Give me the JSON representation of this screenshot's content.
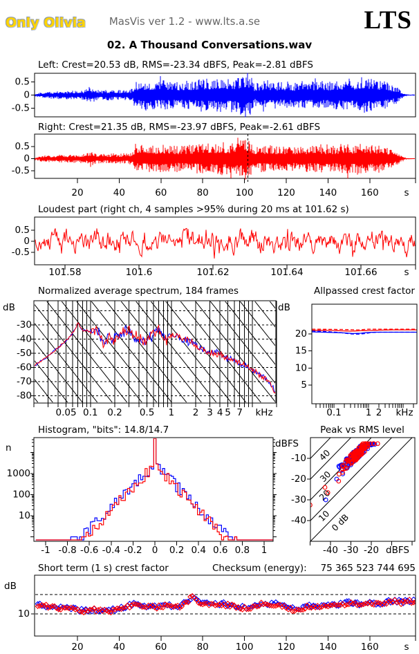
{
  "header": {
    "artist": "Only Olivia",
    "app": "MasVis ver 1.2 - www.lts.a.se",
    "logo": "LTS",
    "track": "02. A Thousand Conversations.wav"
  },
  "colors": {
    "left": "#0000ff",
    "right": "#ff0000",
    "axis": "#000000",
    "header_gray": "#666666"
  },
  "chart_data": [
    {
      "type": "waveform",
      "channel": "left",
      "title": "Left: Crest=20.53 dB, RMS=-23.34 dBFS, Peak=-2.81 dBFS",
      "crest_db": 20.53,
      "rms_dbfs": -23.34,
      "peak_dbfs": -2.81,
      "yticks": [
        "0.5",
        "0",
        "-0.5"
      ],
      "envelope": [
        [
          0,
          0.05
        ],
        [
          3,
          0.1
        ],
        [
          8,
          0.12
        ],
        [
          14,
          0.13
        ],
        [
          20,
          0.14
        ],
        [
          24,
          0.16
        ],
        [
          26,
          0.28
        ],
        [
          28,
          0.2
        ],
        [
          32,
          0.15
        ],
        [
          36,
          0.17
        ],
        [
          40,
          0.16
        ],
        [
          44,
          0.18
        ],
        [
          46,
          0.2
        ],
        [
          48,
          0.44
        ],
        [
          53,
          0.46
        ],
        [
          58,
          0.44
        ],
        [
          63,
          0.46
        ],
        [
          68,
          0.4
        ],
        [
          72,
          0.44
        ],
        [
          76,
          0.46
        ],
        [
          80,
          0.52
        ],
        [
          84,
          0.5
        ],
        [
          88,
          0.56
        ],
        [
          92,
          0.5
        ],
        [
          96,
          0.56
        ],
        [
          99,
          0.64
        ],
        [
          101,
          0.74
        ],
        [
          103,
          0.62
        ],
        [
          105,
          0.34
        ],
        [
          108,
          0.44
        ],
        [
          112,
          0.46
        ],
        [
          116,
          0.4
        ],
        [
          120,
          0.44
        ],
        [
          124,
          0.38
        ],
        [
          128,
          0.46
        ],
        [
          132,
          0.42
        ],
        [
          136,
          0.48
        ],
        [
          140,
          0.4
        ],
        [
          144,
          0.44
        ],
        [
          148,
          0.52
        ],
        [
          152,
          0.48
        ],
        [
          156,
          0.58
        ],
        [
          159,
          0.52
        ],
        [
          162,
          0.5
        ],
        [
          166,
          0.46
        ],
        [
          170,
          0.36
        ],
        [
          173,
          0.26
        ],
        [
          175,
          0.12
        ],
        [
          177,
          0.05
        ],
        [
          178,
          0.02
        ],
        [
          182,
          0.02
        ]
      ]
    },
    {
      "type": "waveform",
      "channel": "right",
      "title": "Right: Crest=21.35 dB, RMS=-23.97 dBFS, Peak=-2.61 dBFS",
      "crest_db": 21.35,
      "rms_dbfs": -23.97,
      "peak_dbfs": -2.61,
      "yticks": [
        "0.5",
        "0",
        "-0.5"
      ],
      "marker_time_s": 101.62,
      "xticks": [
        20,
        40,
        60,
        80,
        100,
        120,
        140,
        160
      ],
      "xunit": "s"
    },
    {
      "type": "waveform-fine",
      "title": "Loudest part (right ch, 4 samples >95% during 20 ms at 101.62 s)",
      "yticks": [
        "0.5",
        "0",
        "-0.5"
      ],
      "xticks": [
        "101.58",
        "101.6",
        "101.62",
        "101.64",
        "101.66"
      ],
      "xtick_values": [
        101.58,
        101.6,
        101.62,
        101.64,
        101.66
      ],
      "xunit": "s"
    },
    {
      "type": "line",
      "title": "Normalized average spectrum, 184 frames",
      "ylabel_left": "dB",
      "ylabel_right": "dB",
      "yticks": [
        -30,
        -40,
        -50,
        -60,
        -70,
        -80
      ],
      "xtick_labels": [
        "0.05",
        "0.1",
        "0.2",
        "0.5",
        "1",
        "2",
        "3",
        "4",
        "5",
        "7"
      ],
      "xtick_values": [
        0.05,
        0.1,
        0.2,
        0.5,
        1,
        2,
        3,
        4,
        5,
        7
      ],
      "xunit": "kHz",
      "xrange_khz": [
        0.02,
        20
      ],
      "keypoints": [
        [
          0.02,
          -59
        ],
        [
          0.025,
          -55
        ],
        [
          0.03,
          -52
        ],
        [
          0.04,
          -46
        ],
        [
          0.05,
          -41
        ],
        [
          0.06,
          -36
        ],
        [
          0.065,
          -33
        ],
        [
          0.07,
          -28
        ],
        [
          0.075,
          -32
        ],
        [
          0.08,
          -34
        ],
        [
          0.09,
          -34
        ],
        [
          0.1,
          -35
        ],
        [
          0.11,
          -33
        ],
        [
          0.13,
          -36
        ],
        [
          0.15,
          -44
        ],
        [
          0.17,
          -38
        ],
        [
          0.2,
          -40
        ],
        [
          0.25,
          -35
        ],
        [
          0.3,
          -33
        ],
        [
          0.35,
          -38
        ],
        [
          0.4,
          -40
        ],
        [
          0.45,
          -43
        ],
        [
          0.5,
          -41
        ],
        [
          0.6,
          -36
        ],
        [
          0.7,
          -34
        ],
        [
          0.8,
          -38
        ],
        [
          0.9,
          -40
        ],
        [
          1.0,
          -36
        ],
        [
          1.2,
          -38
        ],
        [
          1.5,
          -41
        ],
        [
          1.8,
          -43
        ],
        [
          2.2,
          -46
        ],
        [
          2.7,
          -49
        ],
        [
          3.5,
          -50
        ],
        [
          4.5,
          -52
        ],
        [
          5.5,
          -54
        ],
        [
          7,
          -57
        ],
        [
          9,
          -60
        ],
        [
          11,
          -63
        ],
        [
          14,
          -67
        ],
        [
          17,
          -72
        ],
        [
          20,
          -79
        ]
      ]
    },
    {
      "type": "line",
      "title": "Allpassed crest factor",
      "ylabel": "dB",
      "yticks": [
        20,
        15,
        10,
        5
      ],
      "xtick_labels": [
        "0.1",
        "1",
        "2"
      ],
      "xtick_values": [
        0.1,
        1,
        2
      ],
      "xunit": "kHz",
      "curves": [
        {
          "name": "left-solid",
          "color": "#0000ff",
          "dash": false,
          "points": [
            [
              0.023,
              20.6
            ],
            [
              0.05,
              20.5
            ],
            [
              0.1,
              20.4
            ],
            [
              0.2,
              20.3
            ],
            [
              0.35,
              20.1
            ],
            [
              0.6,
              20.2
            ],
            [
              0.9,
              20.4
            ],
            [
              1.5,
              20.5
            ],
            [
              3,
              20.5
            ],
            [
              25,
              20.5
            ]
          ]
        },
        {
          "name": "left-dashed",
          "color": "#0000ff",
          "dash": true,
          "points": [
            [
              0.023,
              20.9
            ],
            [
              0.06,
              20.7
            ],
            [
              0.15,
              20.4
            ],
            [
              0.3,
              20.0
            ],
            [
              0.5,
              19.9
            ],
            [
              0.8,
              20.1
            ],
            [
              1.2,
              20.4
            ],
            [
              2,
              20.5
            ],
            [
              25,
              20.5
            ]
          ]
        },
        {
          "name": "right-solid",
          "color": "#ff0000",
          "dash": false,
          "points": [
            [
              0.023,
              21.1
            ],
            [
              0.1,
              21.0
            ],
            [
              0.3,
              20.8
            ],
            [
              0.5,
              20.9
            ],
            [
              1,
              21.0
            ],
            [
              2,
              21.1
            ],
            [
              5,
              21.2
            ],
            [
              25,
              21.2
            ]
          ]
        },
        {
          "name": "right-dashed",
          "color": "#ff0000",
          "dash": true,
          "points": [
            [
              0.023,
              21.4
            ],
            [
              0.2,
              21.3
            ],
            [
              0.5,
              21.2
            ],
            [
              1,
              21.4
            ],
            [
              3,
              21.4
            ],
            [
              25,
              21.4
            ]
          ]
        }
      ]
    },
    {
      "type": "histogram",
      "title": "Histogram, \"bits\": 14.8/14.7",
      "bits": "14.8/14.7",
      "ylabel": "n",
      "yticks": [
        1000,
        100,
        10
      ],
      "xticks": [
        "-1",
        "-0.8",
        "-0.6",
        "-0.4",
        "-0.2",
        "0",
        "0.2",
        "0.4",
        "0.6",
        "0.8",
        "1"
      ],
      "xtick_values": [
        -1,
        -0.8,
        -0.6,
        -0.4,
        -0.2,
        0,
        0.2,
        0.4,
        0.6,
        0.8,
        1
      ],
      "peak_count_log10": 3.43,
      "decay_log10_per_unit": {
        "left": 5.1,
        "right": 5.45
      },
      "spike_at_zero": true
    },
    {
      "type": "scatter",
      "title": "Peak vs RMS level",
      "ylabel": "dBFS",
      "xlabel": "dBFS",
      "yticks": [
        -10,
        -20,
        -30,
        -40
      ],
      "xticks": [
        -40,
        -30,
        -20
      ],
      "axis_range_db": [
        -50,
        0
      ],
      "diag_labels": [
        {
          "t": "40",
          "x": 467,
          "y": 667
        },
        {
          "t": "30",
          "x": 468,
          "y": 698
        },
        {
          "t": "20",
          "x": 467,
          "y": 725
        },
        {
          "t": "10",
          "x": 466,
          "y": 755
        },
        {
          "t": "0 dB",
          "x": 485,
          "y": 769
        }
      ],
      "cluster": {
        "rms_range": [
          -38,
          -15
        ],
        "crest_mean": 18,
        "crest_spread": 5,
        "n_per_channel": 110
      },
      "outliers_right": [
        [
          -42.7,
          -24
        ],
        [
          -41.3,
          -26.5
        ],
        [
          -50,
          -32.5
        ],
        [
          -36,
          -21
        ]
      ],
      "outliers_left": [
        [
          -42.3,
          -30
        ],
        [
          -34,
          -17.5
        ],
        [
          -37,
          -20
        ]
      ]
    },
    {
      "type": "scatter",
      "title": "Short term (1 s) crest factor",
      "checksum_label": "Checksum (energy):",
      "checksum_value": "75 365 523 744 695",
      "ylabel": "dB",
      "ytick": "10",
      "dashed_levels_db": [
        10,
        20
      ],
      "xticks": [
        20,
        40,
        60,
        80,
        100,
        120,
        140,
        160
      ],
      "xunit": "s",
      "envelope": [
        [
          1,
          14.5
        ],
        [
          8,
          13.5
        ],
        [
          15,
          12.8
        ],
        [
          22,
          11.5
        ],
        [
          28,
          12
        ],
        [
          33,
          11.3
        ],
        [
          40,
          12.2
        ],
        [
          46,
          14.5
        ],
        [
          48,
          15.5
        ],
        [
          52,
          13.8
        ],
        [
          58,
          13.2
        ],
        [
          62,
          14.2
        ],
        [
          68,
          13.5
        ],
        [
          73,
          16
        ],
        [
          75,
          19.5
        ],
        [
          78,
          15.5
        ],
        [
          82,
          15
        ],
        [
          86,
          15.2
        ],
        [
          90,
          14.8
        ],
        [
          95,
          13.8
        ],
        [
          100,
          13
        ],
        [
          104,
          13.5
        ],
        [
          108,
          15.5
        ],
        [
          112,
          14.5
        ],
        [
          116,
          15
        ],
        [
          120,
          13.5
        ],
        [
          124,
          12
        ],
        [
          128,
          13
        ],
        [
          132,
          13.8
        ],
        [
          136,
          13.2
        ],
        [
          140,
          14
        ],
        [
          145,
          14.5
        ],
        [
          150,
          15.8
        ],
        [
          155,
          15
        ],
        [
          160,
          15.5
        ],
        [
          165,
          15.2
        ],
        [
          170,
          16.5
        ],
        [
          175,
          16
        ],
        [
          180,
          16.5
        ],
        [
          185,
          16
        ],
        [
          190,
          16.5
        ],
        [
          193,
          17
        ]
      ]
    }
  ]
}
